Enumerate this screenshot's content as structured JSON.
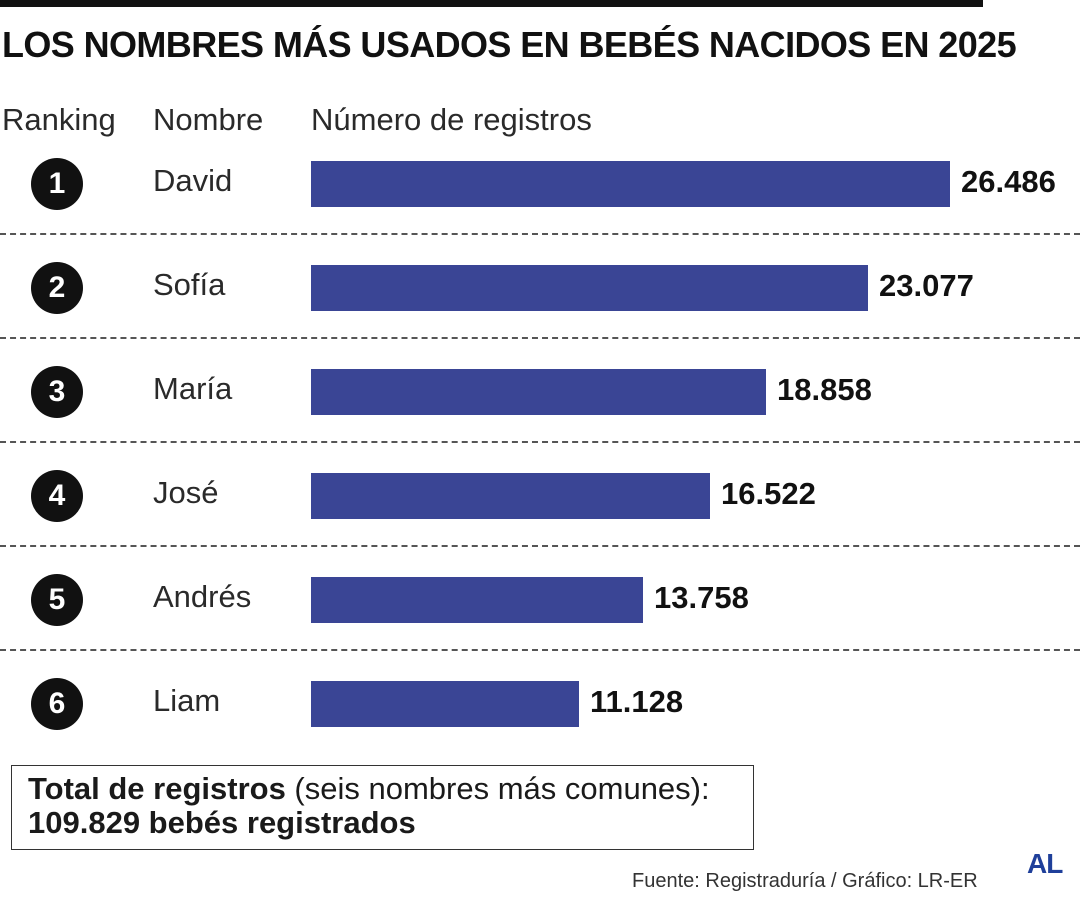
{
  "header": {
    "title": "LOS NOMBRES MÁS USADOS EN BEBÉS NACIDOS EN 2025"
  },
  "chart_data": {
    "type": "bar",
    "orientation": "horizontal",
    "title": "LOS NOMBRES MÁS USADOS EN BEBÉS NACIDOS EN 2025",
    "column_headers": {
      "rank": "Ranking",
      "name": "Nombre",
      "count": "Número de registros"
    },
    "rows": [
      {
        "rank": "1",
        "name": "David",
        "value": 26486,
        "label": "26.486"
      },
      {
        "rank": "2",
        "name": "Sofía",
        "value": 23077,
        "label": "23.077"
      },
      {
        "rank": "3",
        "name": "María",
        "value": 18858,
        "label": "18.858"
      },
      {
        "rank": "4",
        "name": "José",
        "value": 16522,
        "label": "16.522"
      },
      {
        "rank": "5",
        "name": "Andrés",
        "value": 13758,
        "label": "13.758"
      },
      {
        "rank": "6",
        "name": "Liam",
        "value": 11128,
        "label": "11.128"
      }
    ],
    "bar_color": "#3a4595",
    "grid": false
  },
  "total": {
    "label_bold": "Total de registros",
    "label_rest": " (seis nombres más comunes):",
    "value_line": "109.829 bebés registrados"
  },
  "footer": {
    "source": "Fuente: Registraduría / Gráfico: LR-ER",
    "logo": "AL"
  }
}
